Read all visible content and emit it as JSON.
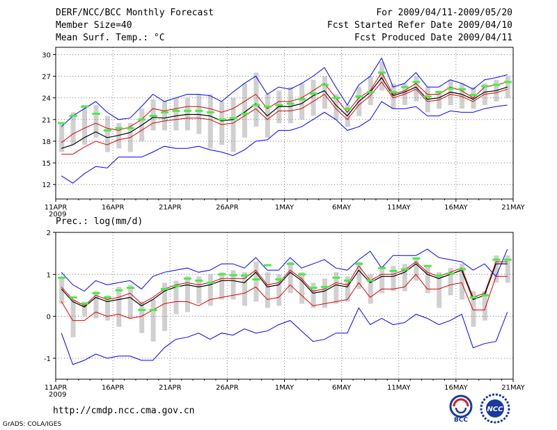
{
  "header": {
    "title": "DERF/NCC/BCC Monthly Forecast",
    "member_size": "Member Size=40",
    "variable": "Mean Surf. Temp.: °C",
    "period": "For 2009/04/11-2009/05/20",
    "started": "Fcst Started Refer Date 2009/04/10",
    "produced": "Fcst Produced Date 2009/04/11"
  },
  "footer": {
    "url": "http://cmdp.ncc.cma.gov.cn",
    "credit": "GrADS: COLA/IGES",
    "logo1_text": "BCC",
    "logo2_text": "NCC"
  },
  "colors": {
    "upper": "#0000ff",
    "lower_blue": "#0000ff",
    "upper_red": "#dd0000",
    "ens_mean": "#000000",
    "green": "#44ee44",
    "box": "#d0d0d0",
    "grid": "#777777"
  },
  "chart_data": [
    {
      "type": "line",
      "title": "Mean Surf. Temp.: °C",
      "xlabel": "",
      "ylabel": "",
      "x_ticks": [
        "11APR",
        "16APR",
        "21APR",
        "26APR",
        "1MAY",
        "6MAY",
        "11MAY",
        "16MAY",
        "21MAY"
      ],
      "x_year": "2009",
      "xlim": [
        1,
        41
      ],
      "ylim": [
        10,
        31
      ],
      "y_ticks": [
        12,
        15,
        18,
        21,
        24,
        27,
        30
      ],
      "days": 40,
      "series": [
        {
          "name": "max",
          "values": [
            20.0,
            21.5,
            22.5,
            23.5,
            22.0,
            21.0,
            21.2,
            22.8,
            24.5,
            23.5,
            24.0,
            24.5,
            24.5,
            24.3,
            23.5,
            24.8,
            26.0,
            27.0,
            24.5,
            25.5,
            25.2,
            26.0,
            27.0,
            28.2,
            25.5,
            23.0,
            25.8,
            27.0,
            29.5,
            25.5,
            26.0,
            27.5,
            25.5,
            25.5,
            26.5,
            26.0,
            25.2,
            26.5,
            26.8,
            27.2
          ]
        },
        {
          "name": "upper",
          "values": [
            17.8,
            19.0,
            19.8,
            20.5,
            19.8,
            19.5,
            20.0,
            21.0,
            22.5,
            22.2,
            22.5,
            22.8,
            22.8,
            22.5,
            22.0,
            22.5,
            23.5,
            24.5,
            22.5,
            23.5,
            23.5,
            24.0,
            25.0,
            26.0,
            24.0,
            22.0,
            24.0,
            25.0,
            27.5,
            24.5,
            25.0,
            26.0,
            24.5,
            24.5,
            25.5,
            25.0,
            24.0,
            25.5,
            25.8,
            26.2
          ]
        },
        {
          "name": "mean",
          "values": [
            17.0,
            17.5,
            18.5,
            19.3,
            18.5,
            18.8,
            19.2,
            20.2,
            21.3,
            21.2,
            21.5,
            21.7,
            21.7,
            21.5,
            20.8,
            21.0,
            22.0,
            23.2,
            21.5,
            22.8,
            22.8,
            23.2,
            24.3,
            25.0,
            23.0,
            21.5,
            23.5,
            24.8,
            26.8,
            24.3,
            24.8,
            25.5,
            23.8,
            24.0,
            24.8,
            24.5,
            23.8,
            24.8,
            25.0,
            25.5
          ]
        },
        {
          "name": "lower",
          "values": [
            16.2,
            16.2,
            17.2,
            18.0,
            17.5,
            18.2,
            18.5,
            19.5,
            20.5,
            20.8,
            21.0,
            21.2,
            21.2,
            21.0,
            20.3,
            20.5,
            21.5,
            22.5,
            21.0,
            22.2,
            22.2,
            22.5,
            23.5,
            24.5,
            22.5,
            21.0,
            23.0,
            24.3,
            26.2,
            24.0,
            24.5,
            25.2,
            23.5,
            23.7,
            24.5,
            24.2,
            23.5,
            24.5,
            24.7,
            25.2
          ]
        },
        {
          "name": "min",
          "values": [
            13.2,
            12.2,
            13.5,
            14.5,
            14.3,
            15.8,
            15.8,
            15.8,
            16.5,
            17.3,
            17.0,
            17.0,
            17.3,
            16.8,
            16.5,
            16.0,
            16.8,
            18.0,
            18.2,
            19.5,
            19.5,
            20.0,
            21.0,
            22.0,
            21.0,
            19.5,
            20.0,
            21.0,
            23.5,
            22.5,
            22.5,
            22.8,
            21.5,
            21.5,
            22.2,
            22.0,
            22.0,
            22.5,
            22.8,
            23.0
          ]
        },
        {
          "name": "green",
          "values": [
            20.5,
            21.5,
            22.8,
            21.8,
            19.5,
            19.8,
            19.8,
            21.0,
            21.5,
            22.0,
            22.2,
            22.2,
            22.2,
            22.0,
            21.0,
            21.2,
            21.8,
            23.0,
            22.8,
            23.0,
            23.2,
            23.8,
            24.6,
            25.8,
            24.0,
            22.5,
            24.2,
            24.8,
            27.5,
            24.8,
            25.5,
            26.2,
            24.2,
            24.8,
            25.3,
            25.2,
            24.4,
            25.6,
            25.8,
            26.2
          ]
        },
        {
          "name": "box_top",
          "values": [
            20.5,
            22.0,
            23.0,
            23.0,
            21.5,
            20.5,
            20.5,
            22.5,
            23.8,
            23.5,
            24.0,
            24.0,
            24.5,
            24.5,
            23.5,
            24.0,
            26.0,
            27.5,
            24.5,
            25.0,
            25.5,
            26.0,
            26.5,
            27.0,
            24.5,
            23.0,
            25.5,
            27.0,
            29.0,
            26.0,
            26.0,
            27.0,
            25.5,
            25.0,
            26.5,
            26.0,
            25.5,
            26.0,
            26.5,
            27.0
          ]
        },
        {
          "name": "box_bottom",
          "values": [
            16.5,
            17.5,
            17.5,
            18.5,
            16.5,
            17.0,
            16.5,
            18.0,
            19.5,
            19.5,
            19.5,
            19.5,
            19.0,
            17.0,
            17.5,
            16.5,
            18.5,
            20.0,
            18.5,
            20.5,
            20.5,
            21.0,
            21.5,
            22.5,
            21.0,
            20.0,
            21.5,
            23.0,
            25.0,
            22.5,
            23.0,
            23.5,
            22.0,
            22.5,
            23.0,
            22.5,
            22.5,
            23.0,
            23.5,
            24.0
          ]
        }
      ]
    },
    {
      "type": "line",
      "title": "Prec.: log(mm/d)",
      "xlabel": "",
      "ylabel": "",
      "x_ticks": [
        "11APR",
        "16APR",
        "21APR",
        "26APR",
        "1MAY",
        "6MAY",
        "11MAY",
        "16MAY",
        "21MAY"
      ],
      "x_year": "2009",
      "xlim": [
        1,
        41
      ],
      "ylim": [
        -1.5,
        2.0
      ],
      "y_ticks": [
        -1,
        0,
        1,
        2
      ],
      "days": 40,
      "series": [
        {
          "name": "max",
          "values": [
            1.05,
            0.75,
            0.6,
            0.85,
            0.75,
            0.8,
            0.85,
            0.65,
            0.95,
            1.05,
            1.1,
            1.15,
            1.05,
            1.1,
            1.25,
            1.25,
            1.15,
            1.4,
            1.1,
            1.1,
            1.4,
            1.15,
            1.25,
            1.35,
            1.15,
            1.1,
            1.35,
            1.55,
            1.15,
            1.45,
            1.45,
            1.45,
            1.6,
            1.4,
            1.35,
            1.3,
            1.1,
            1.25,
            0.95,
            1.6
          ]
        },
        {
          "name": "upper",
          "values": [
            0.7,
            0.4,
            0.25,
            0.5,
            0.4,
            0.45,
            0.55,
            0.3,
            0.45,
            0.65,
            0.75,
            0.8,
            0.75,
            0.8,
            0.9,
            0.9,
            0.9,
            1.1,
            0.75,
            0.8,
            1.1,
            0.9,
            0.6,
            0.65,
            0.8,
            0.75,
            1.2,
            0.85,
            1.0,
            1.0,
            1.1,
            1.3,
            1.05,
            0.95,
            1.05,
            1.15,
            0.45,
            0.55,
            1.3,
            1.3
          ]
        },
        {
          "name": "mean",
          "values": [
            0.65,
            0.35,
            0.22,
            0.45,
            0.35,
            0.4,
            0.45,
            0.25,
            0.4,
            0.6,
            0.7,
            0.75,
            0.7,
            0.75,
            0.85,
            0.85,
            0.8,
            1.05,
            0.7,
            0.75,
            1.05,
            0.85,
            0.55,
            0.6,
            0.75,
            0.7,
            1.1,
            0.8,
            0.95,
            0.95,
            1.05,
            1.25,
            1.0,
            0.9,
            1.0,
            1.1,
            0.4,
            0.5,
            1.25,
            1.25
          ]
        },
        {
          "name": "lower",
          "values": [
            0.35,
            -0.1,
            -0.1,
            0.1,
            0.0,
            0.05,
            -0.05,
            0.0,
            0.15,
            0.3,
            0.35,
            0.35,
            0.25,
            0.4,
            0.45,
            0.5,
            0.55,
            0.7,
            0.4,
            0.45,
            0.75,
            0.5,
            0.25,
            0.3,
            0.35,
            0.4,
            0.8,
            0.45,
            0.65,
            0.65,
            0.7,
            1.0,
            0.65,
            0.65,
            0.75,
            0.8,
            0.15,
            0.15,
            0.95,
            0.95
          ]
        },
        {
          "name": "min",
          "values": [
            -0.4,
            -1.15,
            -1.05,
            -0.9,
            -1.0,
            -0.95,
            -0.95,
            -1.05,
            -1.05,
            -0.75,
            -0.55,
            -0.5,
            -0.4,
            -0.55,
            -0.4,
            -0.45,
            -0.3,
            -0.4,
            -0.35,
            -0.2,
            -0.1,
            -0.35,
            -0.6,
            -0.55,
            -0.4,
            -0.4,
            0.2,
            -0.2,
            -0.05,
            -0.2,
            -0.15,
            0.05,
            -0.05,
            -0.2,
            -0.1,
            0.05,
            -0.75,
            -0.65,
            -0.6,
            0.1
          ]
        },
        {
          "name": "green",
          "values": [
            0.92,
            0.45,
            0.3,
            0.55,
            0.45,
            0.62,
            0.68,
            0.15,
            0.15,
            0.65,
            0.72,
            0.9,
            0.85,
            0.8,
            1.0,
            0.98,
            0.97,
            0.88,
            1.22,
            0.88,
            1.25,
            1.0,
            0.68,
            0.7,
            0.92,
            0.85,
            1.25,
            0.85,
            1.15,
            1.08,
            1.12,
            1.38,
            1.2,
            0.97,
            1.02,
            1.12,
            0.45,
            0.5,
            1.35,
            1.35
          ]
        },
        {
          "name": "box_top",
          "values": [
            0.95,
            0.4,
            0.35,
            0.6,
            0.5,
            0.7,
            0.75,
            0.35,
            0.4,
            0.8,
            0.85,
            0.95,
            0.95,
            1.0,
            1.05,
            1.1,
            1.05,
            1.3,
            1.05,
            1.0,
            1.3,
            1.05,
            0.8,
            0.9,
            1.05,
            0.95,
            1.3,
            1.0,
            1.2,
            1.2,
            1.25,
            1.4,
            1.2,
            1.05,
            1.15,
            1.25,
            0.6,
            0.6,
            1.45,
            1.45
          ]
        },
        {
          "name": "box_bottom",
          "values": [
            0.3,
            -0.5,
            0.0,
            -0.05,
            -0.1,
            -0.25,
            -0.05,
            -0.4,
            -0.6,
            -0.35,
            0.05,
            0.1,
            0.3,
            0.25,
            0.4,
            0.4,
            0.25,
            0.35,
            0.2,
            0.25,
            0.55,
            0.3,
            0.2,
            0.2,
            0.3,
            0.35,
            0.65,
            0.3,
            0.55,
            0.6,
            0.6,
            0.85,
            0.55,
            0.2,
            0.5,
            0.4,
            -0.25,
            -0.1,
            0.8,
            0.8
          ]
        }
      ]
    }
  ]
}
